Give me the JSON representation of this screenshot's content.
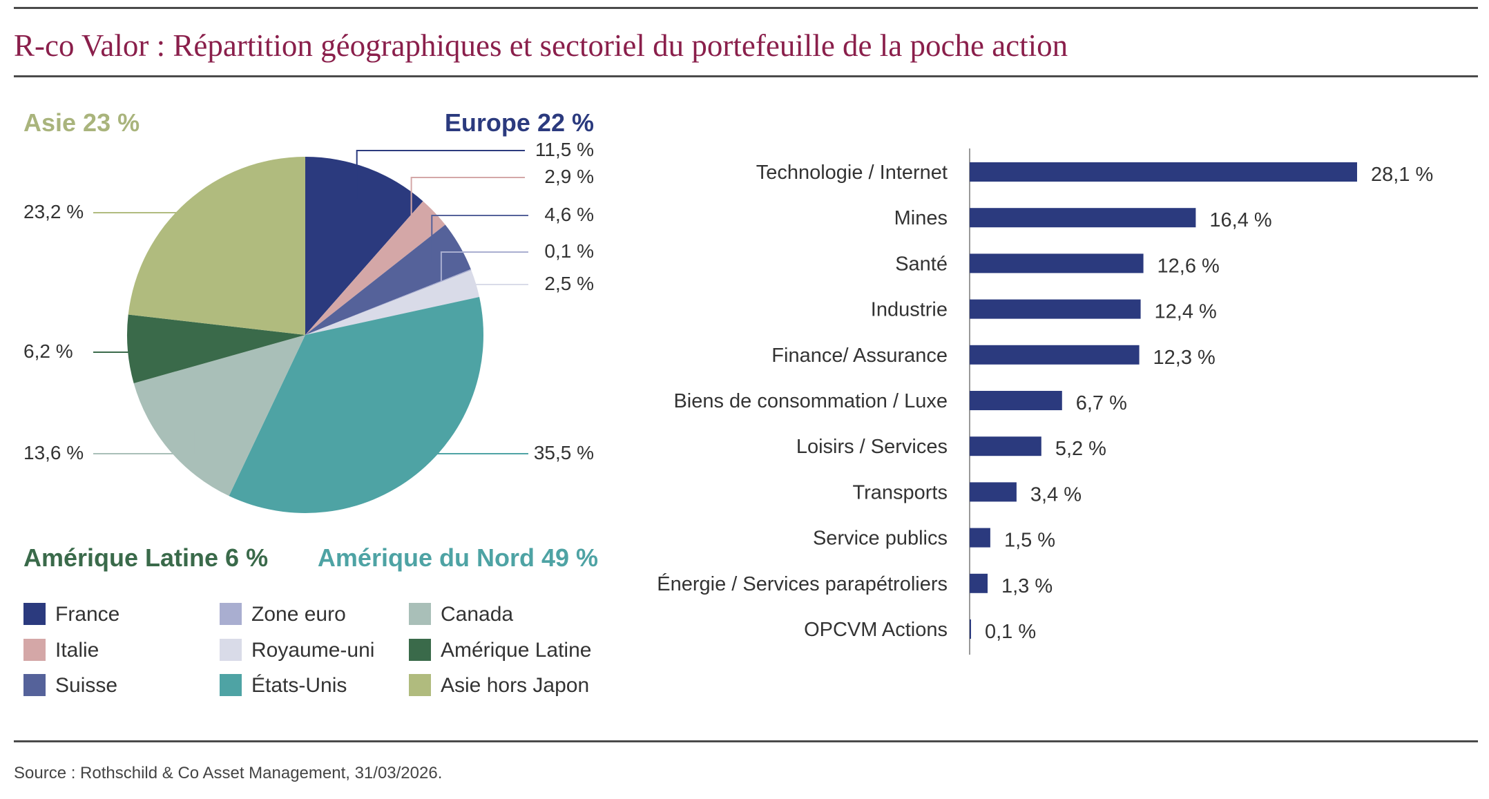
{
  "title": "R-co Valor : Répartition géographiques et sectoriel du portefeuille de la poche action",
  "source": "Source : Rothschild & Co Asset Management, 31/03/2026.",
  "chart_data": [
    {
      "type": "pie",
      "region_labels": [
        {
          "text": "Asie 23 %",
          "color": "#a9b47c"
        },
        {
          "text": "Europe 22 %",
          "color": "#2b3a7e"
        },
        {
          "text": "Amérique Latine 6 %",
          "color": "#3a6a4a"
        },
        {
          "text": "Amérique du Nord 49 %",
          "color": "#4ea3a4"
        }
      ],
      "slices": [
        {
          "name": "France",
          "value": 11.5,
          "label": "11,5 %",
          "color": "#2b3a7e"
        },
        {
          "name": "Italie",
          "value": 2.9,
          "label": "2,9 %",
          "color": "#d4a7a7"
        },
        {
          "name": "Suisse",
          "value": 4.6,
          "label": "4,6 %",
          "color": "#55629a"
        },
        {
          "name": "Zone euro",
          "value": 0.1,
          "label": "0,1 %",
          "color": "#a9aed0"
        },
        {
          "name": "Royaume-uni",
          "value": 2.5,
          "label": "2,5 %",
          "color": "#d9dbe8"
        },
        {
          "name": "États-Unis",
          "value": 35.5,
          "label": "35,5 %",
          "color": "#4ea3a4"
        },
        {
          "name": "Canada",
          "value": 13.6,
          "label": "13,6 %",
          "color": "#a9bfb8"
        },
        {
          "name": "Amérique Latine",
          "value": 6.2,
          "label": "6,2 %",
          "color": "#3a6a4a"
        },
        {
          "name": "Asie hors Japon",
          "value": 23.2,
          "label": "23,2 %",
          "color": "#b0bb7e"
        }
      ],
      "legend": [
        {
          "name": "France",
          "color": "#2b3a7e"
        },
        {
          "name": "Italie",
          "color": "#d4a7a7"
        },
        {
          "name": "Suisse",
          "color": "#55629a"
        },
        {
          "name": "Zone euro",
          "color": "#a9aed0"
        },
        {
          "name": "Royaume-uni",
          "color": "#d9dbe8"
        },
        {
          "name": "États-Unis",
          "color": "#4ea3a4"
        },
        {
          "name": "Canada",
          "color": "#a9bfb8"
        },
        {
          "name": "Amérique Latine",
          "color": "#3a6a4a"
        },
        {
          "name": "Asie hors Japon",
          "color": "#b0bb7e"
        }
      ]
    },
    {
      "type": "bar",
      "orientation": "horizontal",
      "bar_color": "#2b3a7e",
      "categories": [
        "Technologie / Internet",
        "Mines",
        "Santé",
        "Industrie",
        "Finance/ Assurance",
        "Biens de consommation / Luxe",
        "Loisirs / Services",
        "Transports",
        "Service publics",
        "Énergie / Services parapétroliers",
        "OPCVM Actions"
      ],
      "values": [
        28.1,
        16.4,
        12.6,
        12.4,
        12.3,
        6.7,
        5.2,
        3.4,
        1.5,
        1.3,
        0.1
      ],
      "value_labels": [
        "28,1 %",
        "16,4 %",
        "12,6 %",
        "12,4 %",
        "12,3 %",
        "6,7 %",
        "5,2 %",
        "3,4 %",
        "1,5 %",
        "1,3 %",
        "0,1 %"
      ]
    }
  ]
}
